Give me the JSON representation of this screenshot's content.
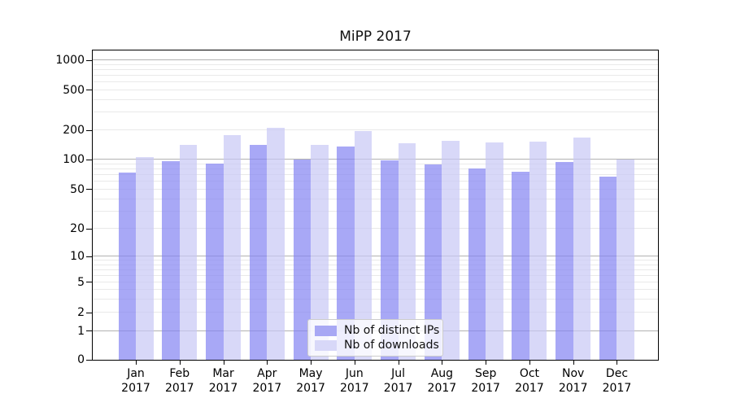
{
  "chart_data": {
    "type": "bar",
    "title": "MiPP 2017",
    "categories": [
      "Jan",
      "Feb",
      "Mar",
      "Apr",
      "May",
      "Jun",
      "Jul",
      "Aug",
      "Sep",
      "Oct",
      "Nov",
      "Dec"
    ],
    "category_year_label": "2017",
    "series": [
      {
        "name": "Nb of distinct IPs",
        "color": "#a8a8f4",
        "values": [
          74,
          96,
          92,
          141,
          101,
          136,
          99,
          90,
          82,
          76,
          94,
          68
        ]
      },
      {
        "name": "Nb of downloads",
        "color": "#d8d8f8",
        "values": [
          106,
          141,
          180,
          211,
          143,
          199,
          147,
          157,
          151,
          155,
          170,
          100
        ]
      }
    ],
    "xlabel": "",
    "ylabel": "",
    "yscale": "symlog",
    "ytick_labels": [
      "0",
      "1",
      "2",
      "5",
      "10",
      "20",
      "50",
      "100",
      "200",
      "500",
      "1000"
    ],
    "yticks": [
      0,
      1,
      2,
      5,
      10,
      20,
      50,
      100,
      200,
      500,
      1000
    ],
    "ylim": [
      0,
      1150
    ],
    "grid": "major and minor horizontal gridlines",
    "legend_position": "lower center",
    "colors": {
      "major_grid": "#b2b2b2",
      "minor_grid": "#e9e9e9",
      "axis": "#000000",
      "bar_distinct_ips": "#a8a8f4",
      "bar_downloads": "#d8d8f8"
    }
  }
}
